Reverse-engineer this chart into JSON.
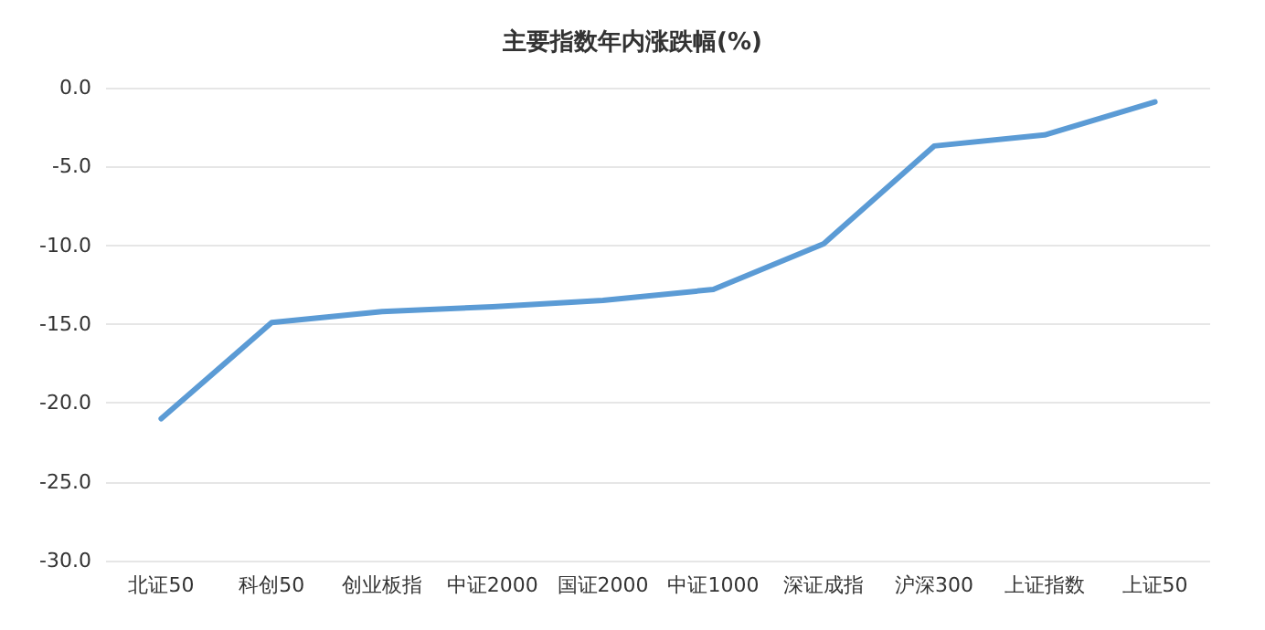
{
  "chart_data": {
    "type": "line",
    "title": "主要指数年内涨跌幅(%)",
    "categories": [
      "北证50",
      "科创50",
      "创业板指",
      "中证2000",
      "国证2000",
      "中证1000",
      "深证成指",
      "沪深300",
      "上证指数",
      "上证50"
    ],
    "series": [
      {
        "color": "#5b9bd5",
        "values": [
          -21.0,
          -14.9,
          -14.2,
          -13.9,
          -13.5,
          -12.8,
          -9.9,
          -3.7,
          -3.0,
          -0.9
        ]
      }
    ],
    "ylim": [
      -30,
      0
    ],
    "yticks": [
      {
        "value": -30,
        "label": "-30.0"
      },
      {
        "value": -25,
        "label": "-25.0"
      },
      {
        "value": -20,
        "label": "-20.0"
      },
      {
        "value": -15,
        "label": "-15.0"
      },
      {
        "value": -10,
        "label": "-10.0"
      },
      {
        "value": -5,
        "label": "-5.0"
      },
      {
        "value": 0,
        "label": "0.0"
      }
    ],
    "grid": "y",
    "marker": "none",
    "line_style": "solid"
  }
}
